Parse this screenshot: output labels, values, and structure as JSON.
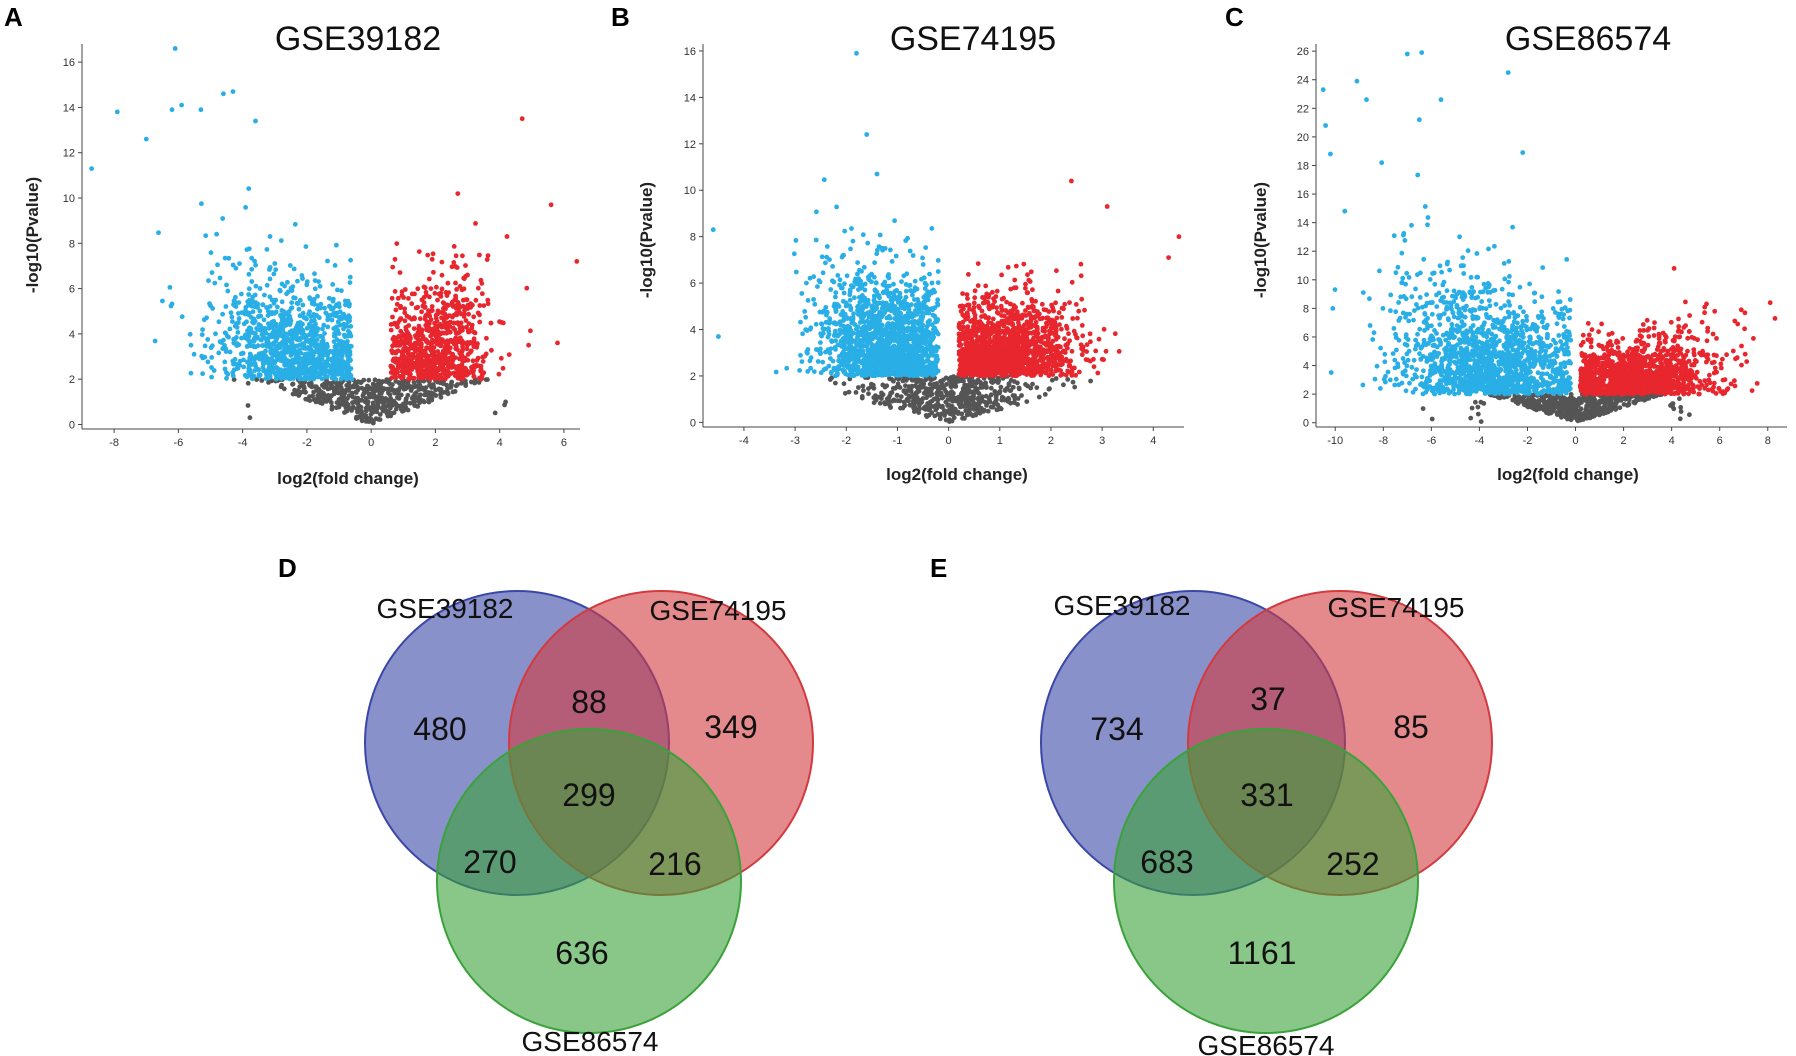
{
  "panel_letters": [
    "A",
    "B",
    "C",
    "D",
    "E"
  ],
  "colors": {
    "down": "#29aee6",
    "up": "#e8262e",
    "ns": "#555555",
    "set_a": "#3a47a8",
    "set_b": "#d23a3f",
    "set_c": "#3aa23a"
  },
  "chart_data": [
    {
      "type": "scatter",
      "panel": "A",
      "title": "GSE39182",
      "xlabel": "log2(fold change)",
      "ylabel": "-log10(Pvalue)",
      "xlim": [
        -9,
        6.5
      ],
      "ylim": [
        -0.2,
        16.8
      ],
      "xticks": [
        -8,
        -6,
        -4,
        -2,
        0,
        2,
        4,
        6
      ],
      "yticks": [
        0,
        2,
        4,
        6,
        8,
        10,
        12,
        14,
        16
      ],
      "threshold_fc": 0.6,
      "threshold_p": 2,
      "n_down": 1100,
      "n_up": 800,
      "n_ns": 520,
      "down_center": [
        -2.4,
        3.4
      ],
      "up_center": [
        2.0,
        3.5
      ],
      "down_spread": [
        1.3,
        1.9
      ],
      "up_spread": [
        0.9,
        1.9
      ],
      "extreme_points": [
        [
          -8.7,
          11.3
        ],
        [
          -7.9,
          13.8
        ],
        [
          -6.1,
          16.6
        ],
        [
          -6.2,
          13.9
        ],
        [
          -5.9,
          14.1
        ],
        [
          -4.6,
          14.6
        ],
        [
          -4.3,
          14.7
        ],
        [
          -3.6,
          13.4
        ],
        [
          -7.0,
          12.6
        ],
        [
          -5.3,
          13.9
        ],
        [
          4.7,
          13.5
        ],
        [
          5.6,
          9.7
        ],
        [
          4.9,
          3.5
        ],
        [
          6.4,
          7.2
        ],
        [
          5.8,
          3.6
        ]
      ]
    },
    {
      "type": "scatter",
      "panel": "B",
      "title": "GSE74195",
      "xlabel": "log2(fold change)",
      "ylabel": "-log10(Pvalue)",
      "xlim": [
        -4.8,
        4.6
      ],
      "ylim": [
        -0.2,
        16.3
      ],
      "xticks": [
        -4,
        -3,
        -2,
        -1,
        0,
        1,
        2,
        3,
        4
      ],
      "yticks": [
        0,
        2,
        4,
        6,
        8,
        10,
        12,
        14,
        16
      ],
      "threshold_fc": 0.2,
      "threshold_p": 2,
      "n_down": 1500,
      "n_up": 1500,
      "n_ns": 520,
      "down_center": [
        -1.2,
        4.4
      ],
      "up_center": [
        1.1,
        3.7
      ],
      "down_spread": [
        0.7,
        2.0
      ],
      "up_spread": [
        0.7,
        1.4
      ],
      "extreme_points": [
        [
          -1.8,
          15.9
        ],
        [
          -1.6,
          12.4
        ],
        [
          -4.6,
          8.3
        ],
        [
          -4.5,
          3.7
        ],
        [
          -1.4,
          10.7
        ],
        [
          3.1,
          9.3
        ],
        [
          4.5,
          8.0
        ],
        [
          4.3,
          7.1
        ],
        [
          2.4,
          10.4
        ]
      ]
    },
    {
      "type": "scatter",
      "panel": "C",
      "title": "GSE86574",
      "xlabel": "log2(fold change)",
      "ylabel": "-log10(Pvalue)",
      "xlim": [
        -10.8,
        8.8
      ],
      "ylim": [
        -0.3,
        26.5
      ],
      "xticks": [
        -10,
        -8,
        -6,
        -4,
        -2,
        0,
        2,
        4,
        6,
        8
      ],
      "yticks": [
        0,
        2,
        4,
        6,
        8,
        10,
        12,
        14,
        16,
        18,
        20,
        22,
        24,
        26
      ],
      "threshold_fc": 0.2,
      "threshold_p": 2,
      "n_down": 1500,
      "n_up": 1300,
      "n_ns": 520,
      "down_center": [
        -3.6,
        5.0
      ],
      "up_center": [
        2.4,
        3.9
      ],
      "down_spread": [
        2.0,
        3.0
      ],
      "up_spread": [
        1.7,
        1.6
      ],
      "extreme_points": [
        [
          -6.4,
          25.9
        ],
        [
          -7.0,
          25.8
        ],
        [
          -2.8,
          24.5
        ],
        [
          -10.5,
          23.3
        ],
        [
          -9.1,
          23.9
        ],
        [
          -8.7,
          22.6
        ],
        [
          -6.5,
          21.2
        ],
        [
          -5.6,
          22.6
        ],
        [
          -10.4,
          20.8
        ],
        [
          -10.2,
          18.8
        ],
        [
          -2.2,
          18.9
        ],
        [
          -9.6,
          14.8
        ],
        [
          -10.1,
          8.0
        ],
        [
          6.9,
          7.9
        ],
        [
          8.1,
          8.4
        ],
        [
          8.3,
          7.3
        ],
        [
          7.4,
          5.9
        ],
        [
          4.1,
          10.8
        ]
      ]
    },
    {
      "type": "venn",
      "panel": "D",
      "sets": [
        "GSE39182",
        "GSE74195",
        "GSE86574"
      ],
      "regions": {
        "a_only": 480,
        "b_only": 349,
        "c_only": 636,
        "ab_only": 88,
        "ac_only": 270,
        "bc_only": 216,
        "abc": 299
      }
    },
    {
      "type": "venn",
      "panel": "E",
      "sets": [
        "GSE39182",
        "GSE74195",
        "GSE86574"
      ],
      "regions": {
        "a_only": 734,
        "b_only": 85,
        "c_only": 1161,
        "ab_only": 37,
        "ac_only": 683,
        "bc_only": 252,
        "abc": 331
      }
    }
  ]
}
